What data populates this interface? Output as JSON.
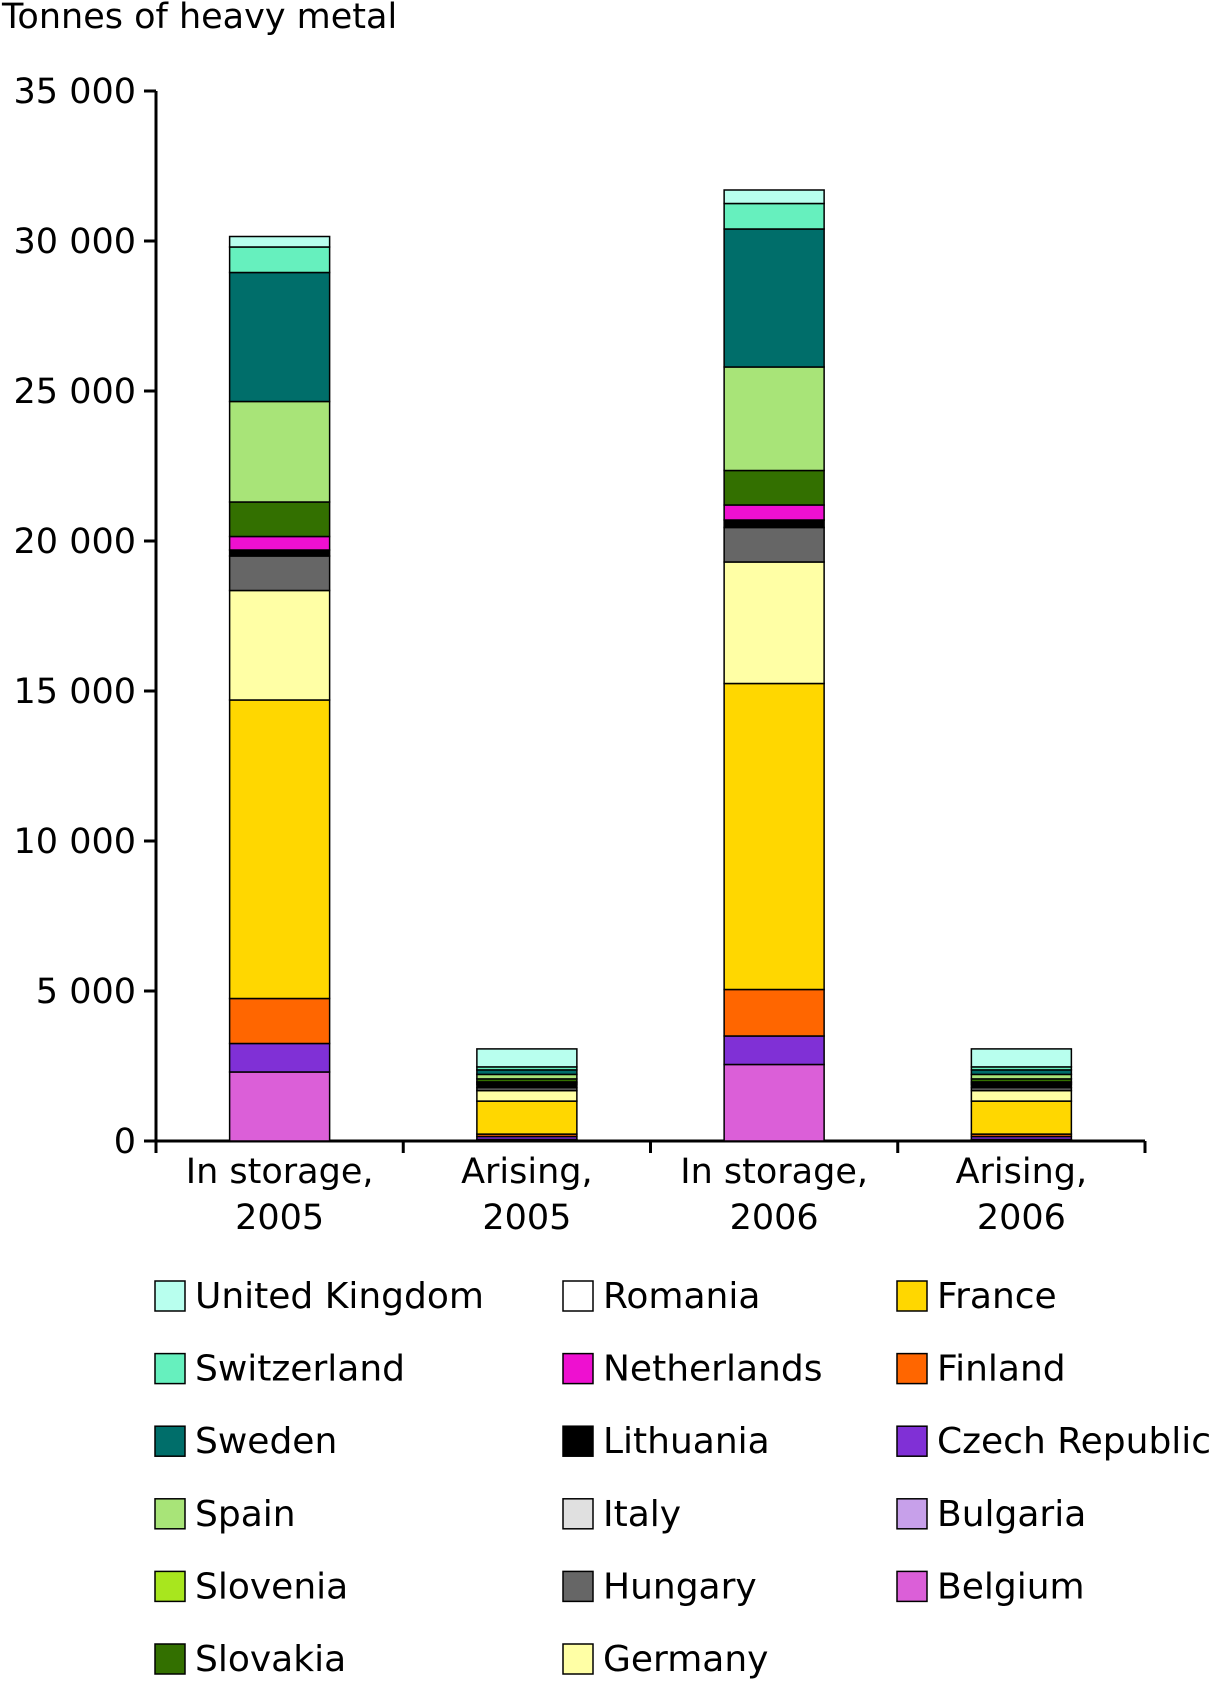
{
  "chart_data": {
    "type": "bar",
    "stacked": true,
    "title": "",
    "ylabel": "Tonnes of heavy metal",
    "xlabel": "",
    "ylim": [
      0,
      35000
    ],
    "yticks": [
      0,
      5000,
      10000,
      15000,
      20000,
      25000,
      30000,
      35000
    ],
    "ytick_labels": [
      "0",
      "5 000",
      "10 000",
      "15 000",
      "20 000",
      "25 000",
      "30 000",
      "35 000"
    ],
    "categories": [
      [
        "In storage,",
        "2005"
      ],
      [
        "Arising,",
        "2005"
      ],
      [
        "In storage,",
        "2006"
      ],
      [
        "Arising,",
        "2006"
      ]
    ],
    "grid": false,
    "legend_position": "bottom",
    "series": [
      {
        "name": "Belgium",
        "color": "#DB5FD8",
        "values": [
          2300,
          40,
          2550,
          40
        ]
      },
      {
        "name": "Bulgaria",
        "color": "#C7A0EA",
        "values": [
          0,
          10,
          0,
          10
        ]
      },
      {
        "name": "Czech Republic",
        "color": "#8030D6",
        "values": [
          950,
          100,
          950,
          100
        ]
      },
      {
        "name": "Finland",
        "color": "#FF6600",
        "values": [
          1500,
          80,
          1550,
          80
        ]
      },
      {
        "name": "France",
        "color": "#FFD700",
        "values": [
          9950,
          1100,
          10200,
          1100
        ]
      },
      {
        "name": "Germany",
        "color": "#FFFFA5",
        "values": [
          3650,
          350,
          4050,
          350
        ]
      },
      {
        "name": "Hungary",
        "color": "#666666",
        "values": [
          1150,
          100,
          1150,
          100
        ]
      },
      {
        "name": "Italy",
        "color": "#E0E0E0",
        "values": [
          0,
          0,
          0,
          0
        ]
      },
      {
        "name": "Lithuania",
        "color": "#000000",
        "values": [
          200,
          100,
          250,
          100
        ]
      },
      {
        "name": "Netherlands",
        "color": "#EE10D0",
        "values": [
          450,
          50,
          500,
          50
        ]
      },
      {
        "name": "Romania",
        "color": "#FFFFFF",
        "values": [
          0,
          40,
          0,
          40
        ]
      },
      {
        "name": "Slovakia",
        "color": "#337000",
        "values": [
          1150,
          100,
          1150,
          100
        ]
      },
      {
        "name": "Slovenia",
        "color": "#A8E61E",
        "values": [
          0,
          0,
          0,
          0
        ]
      },
      {
        "name": "Spain",
        "color": "#A8E478",
        "values": [
          3350,
          150,
          3450,
          150
        ]
      },
      {
        "name": "Sweden",
        "color": "#006E6A",
        "values": [
          4300,
          150,
          4600,
          150
        ]
      },
      {
        "name": "Switzerland",
        "color": "#66F0BE",
        "values": [
          850,
          100,
          850,
          100
        ]
      },
      {
        "name": "United Kingdom",
        "color": "#B8FFEE",
        "values": [
          350,
          600,
          450,
          600
        ]
      }
    ],
    "legend_order": [
      [
        "United Kingdom",
        "Switzerland",
        "Sweden",
        "Spain",
        "Slovenia",
        "Slovakia"
      ],
      [
        "Romania",
        "Netherlands",
        "Lithuania",
        "Italy",
        "Hungary",
        "Germany"
      ],
      [
        "France",
        "Finland",
        "Czech Republic",
        "Bulgaria",
        "Belgium"
      ]
    ]
  }
}
